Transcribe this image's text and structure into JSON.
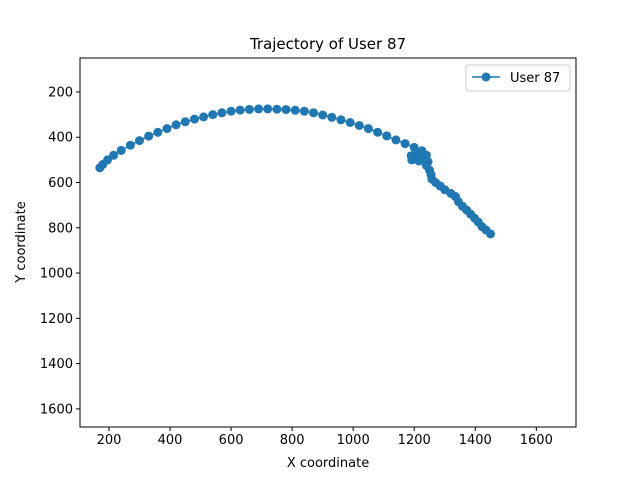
{
  "chart_data": {
    "type": "line",
    "title": "Trajectory of User 87",
    "xlabel": "X coordinate",
    "ylabel": "Y coordinate",
    "xlim": [
      105,
      1730
    ],
    "ylim": [
      1680,
      50
    ],
    "y_inverted": true,
    "xticks": [
      200,
      400,
      600,
      800,
      1000,
      1200,
      1400,
      1600
    ],
    "yticks": [
      200,
      400,
      600,
      800,
      1000,
      1200,
      1400,
      1600
    ],
    "grid": false,
    "legend_position": "top-right",
    "series": [
      {
        "name": "User 87",
        "color": "#1f77b4",
        "marker": "circle",
        "points": [
          [
            170,
            535
          ],
          [
            180,
            520
          ],
          [
            195,
            500
          ],
          [
            215,
            480
          ],
          [
            240,
            458
          ],
          [
            270,
            435
          ],
          [
            300,
            415
          ],
          [
            330,
            395
          ],
          [
            360,
            378
          ],
          [
            390,
            362
          ],
          [
            420,
            345
          ],
          [
            450,
            332
          ],
          [
            480,
            320
          ],
          [
            510,
            310
          ],
          [
            540,
            300
          ],
          [
            570,
            292
          ],
          [
            600,
            285
          ],
          [
            630,
            280
          ],
          [
            660,
            277
          ],
          [
            690,
            275
          ],
          [
            720,
            275
          ],
          [
            750,
            276
          ],
          [
            780,
            278
          ],
          [
            810,
            281
          ],
          [
            840,
            285
          ],
          [
            870,
            292
          ],
          [
            900,
            302
          ],
          [
            930,
            312
          ],
          [
            960,
            323
          ],
          [
            990,
            335
          ],
          [
            1020,
            348
          ],
          [
            1050,
            362
          ],
          [
            1080,
            378
          ],
          [
            1110,
            394
          ],
          [
            1140,
            412
          ],
          [
            1170,
            428
          ],
          [
            1200,
            445
          ],
          [
            1225,
            460
          ],
          [
            1240,
            480
          ],
          [
            1238,
            500
          ],
          [
            1215,
            505
          ],
          [
            1192,
            500
          ],
          [
            1190,
            482
          ],
          [
            1210,
            478
          ],
          [
            1235,
            490
          ],
          [
            1245,
            508
          ],
          [
            1240,
            525
          ],
          [
            1250,
            545
          ],
          [
            1255,
            565
          ],
          [
            1258,
            585
          ],
          [
            1270,
            600
          ],
          [
            1285,
            615
          ],
          [
            1300,
            632
          ],
          [
            1320,
            648
          ],
          [
            1335,
            662
          ],
          [
            1345,
            685
          ],
          [
            1358,
            705
          ],
          [
            1372,
            722
          ],
          [
            1385,
            740
          ],
          [
            1398,
            758
          ],
          [
            1410,
            775
          ],
          [
            1422,
            795
          ],
          [
            1435,
            810
          ],
          [
            1450,
            827
          ]
        ]
      }
    ]
  }
}
